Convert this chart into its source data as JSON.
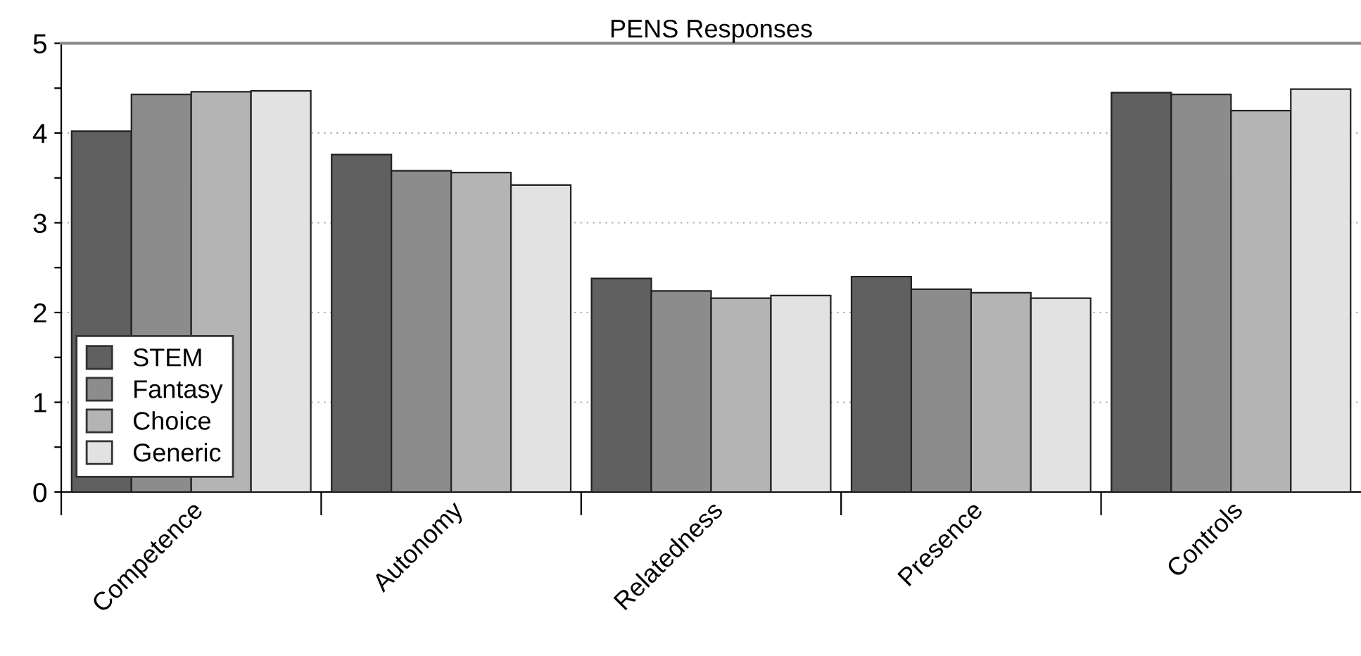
{
  "chart_data": {
    "type": "bar",
    "title": "PENS Responses",
    "categories": [
      "Competence",
      "Autonomy",
      "Relatedness",
      "Presence",
      "Controls"
    ],
    "series": [
      {
        "name": "STEM",
        "color": "#606060",
        "values": [
          4.02,
          3.76,
          2.38,
          2.4,
          4.45
        ]
      },
      {
        "name": "Fantasy",
        "color": "#8c8c8c",
        "values": [
          4.43,
          3.58,
          2.24,
          2.26,
          4.43
        ]
      },
      {
        "name": "Choice",
        "color": "#b4b4b4",
        "values": [
          4.46,
          3.56,
          2.16,
          2.22,
          4.25
        ]
      },
      {
        "name": "Generic",
        "color": "#e2e2e2",
        "values": [
          4.47,
          3.42,
          2.19,
          2.16,
          4.49
        ]
      }
    ],
    "ylim": [
      0,
      5
    ],
    "yticks": [
      0,
      {
        "value": 0.5,
        "label": null
      },
      1,
      {
        "value": 1.5,
        "label": null
      },
      2,
      {
        "value": 2.5,
        "label": null
      },
      3,
      {
        "value": 3.5,
        "label": null
      },
      4,
      {
        "value": 4.5,
        "label": null
      },
      5
    ],
    "grid": "y",
    "legend": "bottom left"
  }
}
